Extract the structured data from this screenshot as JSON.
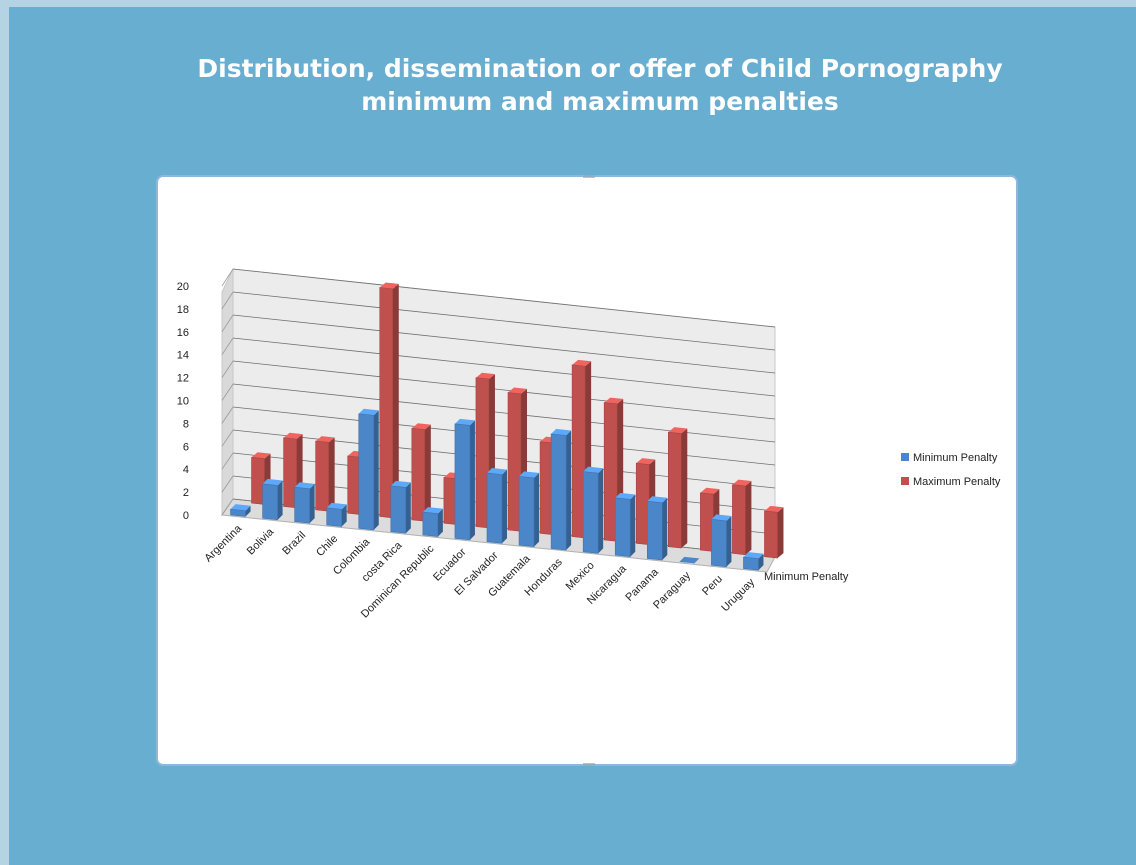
{
  "slide": {
    "title_line1": "Distribution, dissemination or offer of Child Pornography",
    "title_line2": "minimum and maximum penalties"
  },
  "colors": {
    "background": "#68aed0",
    "minimum_series": "#4a86c8",
    "maximum_series": "#c0504d"
  },
  "chart_data": {
    "type": "bar",
    "view": "3d-clustered-column",
    "categories": [
      "Argentina",
      "Bolivia",
      "Brazil",
      "Chile",
      "Colombia",
      "costa Rica",
      "Dominican Republic",
      "Ecuador",
      "El Salvador",
      "Guatemala",
      "Honduras",
      "Mexico",
      "Nicaragua",
      "Panama",
      "Paraguay",
      "Peru",
      "Uruguay"
    ],
    "series": [
      {
        "name": "Minimum Penalty",
        "values": [
          0.5,
          3,
          3,
          1.5,
          10,
          4,
          2,
          10,
          6,
          6,
          10,
          7,
          5,
          5,
          0,
          4,
          1
        ]
      },
      {
        "name": "Maximum Penalty",
        "values": [
          4,
          6,
          6,
          5,
          20,
          8,
          4,
          13,
          12,
          8,
          15,
          12,
          7,
          10,
          5,
          6,
          4
        ]
      }
    ],
    "ylim": [
      0,
      20
    ],
    "yticks": [
      "0",
      "2",
      "4",
      "6",
      "8",
      "10",
      "12",
      "14",
      "16",
      "18",
      "20"
    ],
    "depth_axis_label": "Minimum Penalty",
    "legend": [
      "Minimum Penalty",
      "Maximum Penalty"
    ],
    "legend_position": "right",
    "grid": true
  }
}
